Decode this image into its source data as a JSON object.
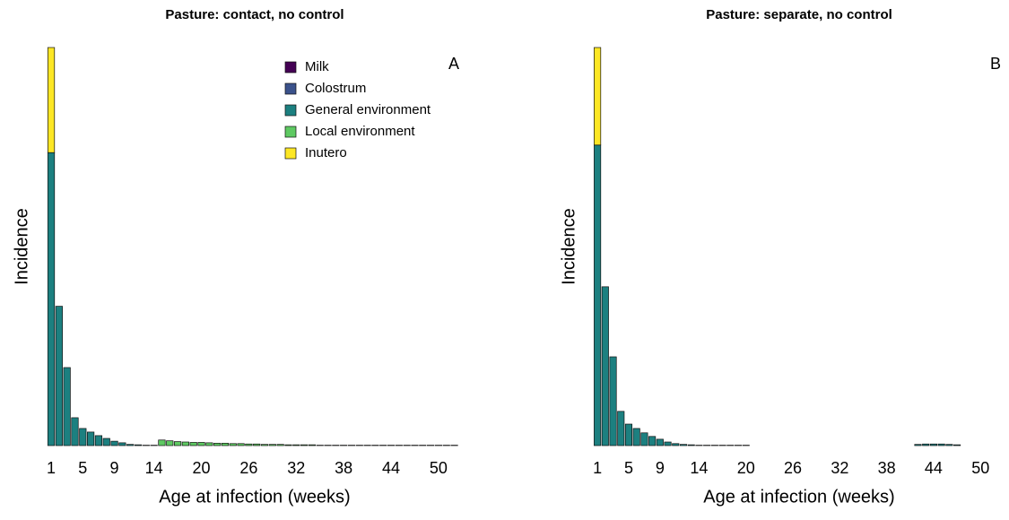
{
  "chart_data": [
    {
      "type": "bar",
      "stacked": true,
      "title": "Pasture: contact, no control",
      "panel_label": "A",
      "xlabel": "Age at infection (weeks)",
      "ylabel": "Incidence",
      "legend": true,
      "legend_position": "top-right",
      "x": [
        1,
        2,
        3,
        4,
        5,
        6,
        7,
        8,
        9,
        10,
        11,
        12,
        13,
        14,
        15,
        16,
        17,
        18,
        19,
        20,
        21,
        22,
        23,
        24,
        25,
        26,
        27,
        28,
        29,
        30,
        31,
        32,
        33,
        34,
        35,
        36,
        37,
        38,
        39,
        40,
        41,
        42,
        43,
        44,
        45,
        46,
        47,
        48,
        49,
        50,
        51,
        52
      ],
      "xlim": [
        0.2,
        53.3
      ],
      "xticks": [
        1,
        5,
        9,
        14,
        20,
        26,
        32,
        38,
        44,
        50
      ],
      "ylim": [
        0,
        100
      ],
      "series": [
        {
          "name": "Milk",
          "color": "#440154",
          "values": [
            0,
            0,
            0,
            0,
            0,
            0,
            0,
            0,
            0,
            0,
            0,
            0,
            0,
            0,
            0,
            0,
            0,
            0,
            0,
            0,
            0,
            0,
            0,
            0,
            0,
            0,
            0,
            0,
            0,
            0,
            0,
            0,
            0,
            0,
            0,
            0,
            0,
            0,
            0,
            0,
            0,
            0,
            0,
            0,
            0,
            0,
            0,
            0,
            0,
            0,
            0,
            0
          ]
        },
        {
          "name": "Colostrum",
          "color": "#3b528b",
          "values": [
            0,
            0,
            0,
            0,
            0,
            0,
            0,
            0,
            0,
            0,
            0,
            0,
            0,
            0,
            0,
            0,
            0,
            0,
            0,
            0,
            0,
            0,
            0,
            0,
            0,
            0,
            0,
            0,
            0,
            0,
            0,
            0,
            0,
            0,
            0,
            0,
            0,
            0,
            0,
            0,
            0,
            0,
            0,
            0,
            0,
            0,
            0,
            0,
            0,
            0,
            0,
            0
          ]
        },
        {
          "name": "General environment",
          "color": "#1c8080",
          "values": [
            73.6,
            35,
            19.6,
            7,
            4.3,
            3.4,
            2.5,
            1.8,
            1.1,
            0.7,
            0.3,
            0.2,
            0.1,
            0.1,
            0,
            0,
            0,
            0,
            0,
            0,
            0,
            0,
            0,
            0,
            0,
            0,
            0,
            0,
            0,
            0,
            0,
            0,
            0,
            0,
            0,
            0,
            0,
            0,
            0,
            0,
            0,
            0,
            0,
            0,
            0,
            0,
            0,
            0,
            0,
            0,
            0,
            0
          ]
        },
        {
          "name": "Local environment",
          "color": "#5ec962",
          "values": [
            0,
            0,
            0,
            0,
            0,
            0,
            0,
            0,
            0,
            0,
            0,
            0,
            0,
            0,
            1.4,
            1.2,
            1.0,
            0.9,
            0.8,
            0.8,
            0.7,
            0.6,
            0.6,
            0.5,
            0.5,
            0.4,
            0.4,
            0.3,
            0.3,
            0.3,
            0.2,
            0.2,
            0.2,
            0.2,
            0.1,
            0.1,
            0.1,
            0.1,
            0.1,
            0.1,
            0.1,
            0.1,
            0.1,
            0.1,
            0.1,
            0.1,
            0.1,
            0.1,
            0.1,
            0.1,
            0.1,
            0.1
          ]
        },
        {
          "name": "Inutero",
          "color": "#fde725",
          "values": [
            26.4,
            0,
            0,
            0,
            0,
            0,
            0,
            0,
            0,
            0,
            0,
            0,
            0,
            0,
            0,
            0,
            0,
            0,
            0,
            0,
            0,
            0,
            0,
            0,
            0,
            0,
            0,
            0,
            0,
            0,
            0,
            0,
            0,
            0,
            0,
            0,
            0,
            0,
            0,
            0,
            0,
            0,
            0,
            0,
            0,
            0,
            0,
            0,
            0,
            0,
            0,
            0
          ]
        }
      ]
    },
    {
      "type": "bar",
      "stacked": true,
      "title": "Pasture: separate, no control",
      "panel_label": "B",
      "xlabel": "Age at infection (weeks)",
      "ylabel": "Incidence",
      "legend": false,
      "x": [
        1,
        2,
        3,
        4,
        5,
        6,
        7,
        8,
        9,
        10,
        11,
        12,
        13,
        14,
        15,
        16,
        17,
        18,
        19,
        20,
        21,
        22,
        23,
        24,
        25,
        26,
        27,
        28,
        29,
        30,
        31,
        32,
        33,
        34,
        35,
        36,
        37,
        38,
        39,
        40,
        41,
        42,
        43,
        44,
        45,
        46,
        47,
        48,
        49,
        50,
        51,
        52
      ],
      "xlim": [
        0.3,
        53.3
      ],
      "xticks": [
        1,
        5,
        9,
        14,
        20,
        26,
        32,
        38,
        44,
        50
      ],
      "ylim": [
        0,
        100
      ],
      "series": [
        {
          "name": "Milk",
          "color": "#440154",
          "values": [
            0,
            0,
            0,
            0,
            0,
            0,
            0,
            0,
            0,
            0,
            0,
            0,
            0,
            0,
            0,
            0,
            0,
            0,
            0,
            0,
            0,
            0,
            0,
            0,
            0,
            0,
            0,
            0,
            0,
            0,
            0,
            0,
            0,
            0,
            0,
            0,
            0,
            0,
            0,
            0,
            0,
            0,
            0,
            0,
            0,
            0,
            0,
            0,
            0,
            0,
            0,
            0
          ]
        },
        {
          "name": "Colostrum",
          "color": "#3b528b",
          "values": [
            0,
            0,
            0,
            0,
            0,
            0,
            0,
            0,
            0,
            0,
            0,
            0,
            0,
            0,
            0,
            0,
            0,
            0,
            0,
            0,
            0,
            0,
            0,
            0,
            0,
            0,
            0,
            0,
            0,
            0,
            0,
            0,
            0,
            0,
            0,
            0,
            0,
            0,
            0,
            0,
            0,
            0,
            0,
            0,
            0,
            0,
            0,
            0,
            0,
            0,
            0,
            0
          ]
        },
        {
          "name": "General environment",
          "color": "#1c8080",
          "values": [
            75.5,
            39.9,
            22.3,
            8.6,
            5.4,
            4.3,
            3.2,
            2.3,
            1.6,
            0.9,
            0.5,
            0.3,
            0.2,
            0.1,
            0.1,
            0.1,
            0.1,
            0.1,
            0.1,
            0.1,
            0,
            0,
            0,
            0,
            0,
            0,
            0,
            0,
            0,
            0,
            0,
            0,
            0,
            0,
            0,
            0,
            0,
            0,
            0,
            0,
            0,
            0.3,
            0.4,
            0.4,
            0.4,
            0.3,
            0.2,
            0,
            0,
            0,
            0,
            0
          ]
        },
        {
          "name": "Local environment",
          "color": "#5ec962",
          "values": [
            0,
            0,
            0,
            0,
            0,
            0,
            0,
            0,
            0,
            0,
            0,
            0,
            0,
            0,
            0,
            0,
            0,
            0,
            0,
            0,
            0,
            0,
            0,
            0,
            0,
            0,
            0,
            0,
            0,
            0,
            0,
            0,
            0,
            0,
            0,
            0,
            0,
            0,
            0,
            0,
            0,
            0,
            0,
            0,
            0,
            0,
            0,
            0,
            0,
            0,
            0,
            0
          ]
        },
        {
          "name": "Inutero",
          "color": "#fde725",
          "values": [
            24.5,
            0,
            0,
            0,
            0,
            0,
            0,
            0,
            0,
            0,
            0,
            0,
            0,
            0,
            0,
            0,
            0,
            0,
            0,
            0,
            0,
            0,
            0,
            0,
            0,
            0,
            0,
            0,
            0,
            0,
            0,
            0,
            0,
            0,
            0,
            0,
            0,
            0,
            0,
            0,
            0,
            0,
            0,
            0,
            0,
            0,
            0,
            0,
            0,
            0,
            0,
            0
          ]
        }
      ]
    }
  ]
}
